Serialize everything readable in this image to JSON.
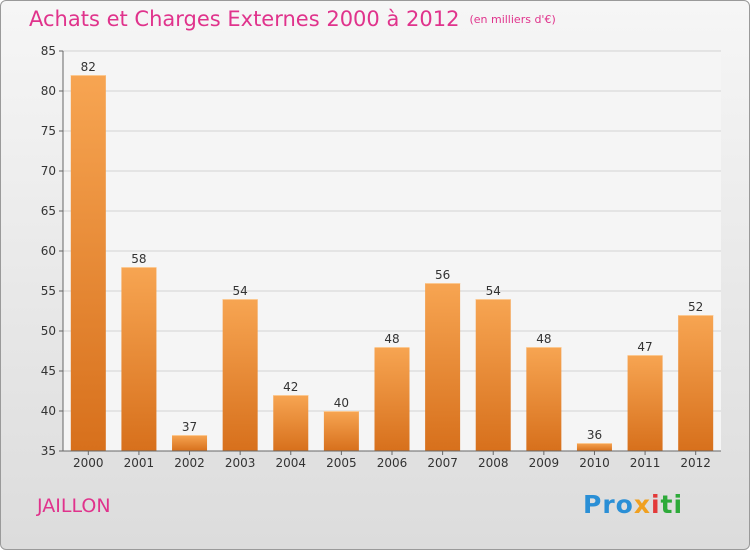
{
  "chart_data": {
    "type": "bar",
    "title": "Achats et Charges Externes 2000 à 2012",
    "unit_label": "(en milliers d'€)",
    "categories": [
      "2000",
      "2001",
      "2002",
      "2003",
      "2004",
      "2005",
      "2006",
      "2007",
      "2008",
      "2009",
      "2010",
      "2011",
      "2012"
    ],
    "values": [
      82,
      58,
      37,
      54,
      42,
      40,
      48,
      56,
      54,
      48,
      36,
      47,
      52
    ],
    "ylim": [
      35,
      85
    ],
    "yticks": [
      35,
      40,
      45,
      50,
      55,
      60,
      65,
      70,
      75,
      80,
      85
    ],
    "grid": true,
    "bar_color": "#f08a2e"
  },
  "commune": "JAILLON",
  "logo": {
    "p1": "Pro",
    "p2": "x",
    "p3": "i",
    "p4": "ti"
  }
}
